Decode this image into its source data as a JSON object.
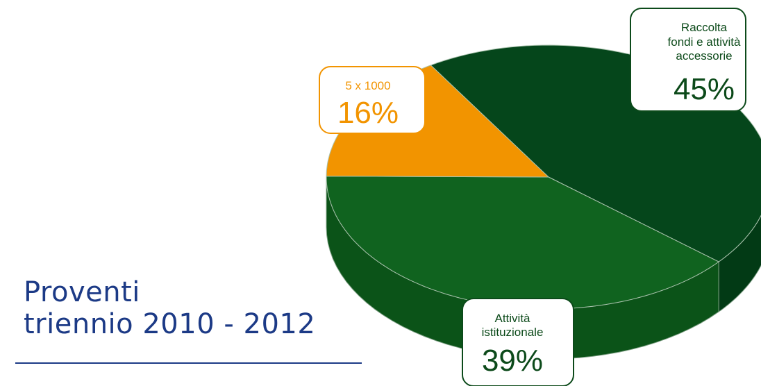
{
  "title": {
    "line1": "Proventi",
    "line2": "triennio 2010 - 2012",
    "color": "#1c3a86"
  },
  "chart_data": {
    "type": "pie",
    "title": "Proventi triennio 2010 - 2012",
    "style": "3d",
    "slices": [
      {
        "label": "Raccolta fondi e attività accessorie",
        "label_lines": [
          "Raccolta",
          "fondi e attività",
          "accessorie"
        ],
        "value": 45,
        "value_label": "45%",
        "color": "#05461b"
      },
      {
        "label": "Attività istituzionale",
        "label_lines": [
          "Attività",
          "istituzionale"
        ],
        "value": 39,
        "value_label": "39%",
        "color": "#10631f"
      },
      {
        "label": "5 x 1000",
        "label_lines": [
          "5 x 1000"
        ],
        "value": 16,
        "value_label": "16%",
        "color": "#f29400"
      }
    ]
  }
}
